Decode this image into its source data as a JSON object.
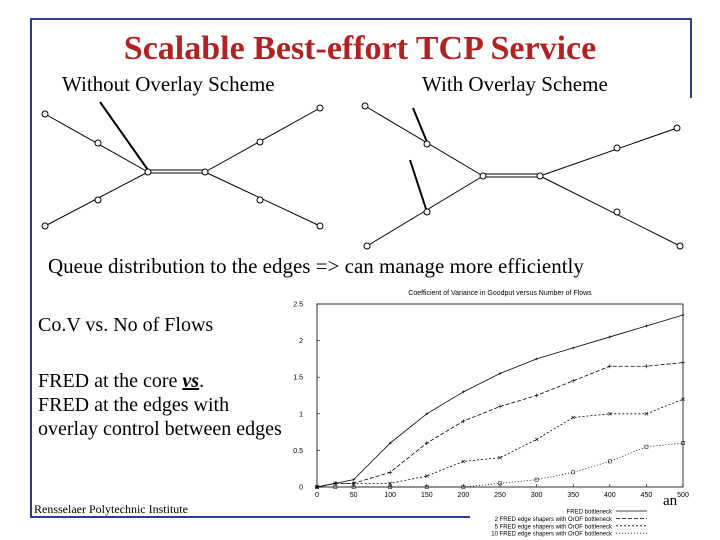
{
  "slide": {
    "title": "Scalable Best-effort TCP Service",
    "label_without": "Without Overlay Scheme",
    "label_with": "With Overlay Scheme",
    "queue_text": "Queue distribution to the edges => can manage more efficiently",
    "cov_text": "Co.V vs. No of Flows",
    "fred_line1_a": "FRED at the core ",
    "fred_line1_vs": "vs",
    "fred_line1_b": ".",
    "fred_rest": "FRED at the edges with overlay control between edges",
    "footer": "Rensselaer Polytechnic Institute",
    "corner_fragment": "an"
  },
  "colors": {
    "title": "#b22222",
    "frame": "#2a3d9a"
  },
  "chart_data": {
    "type": "line",
    "title": "Coefficient of Variance in Goodput versus Number of Flows",
    "x": [
      0,
      25,
      50,
      100,
      150,
      200,
      250,
      300,
      350,
      400,
      450,
      500
    ],
    "xticks": [
      0,
      50,
      100,
      150,
      200,
      250,
      300,
      350,
      400,
      450,
      500
    ],
    "yticks": [
      0,
      0.5,
      1,
      1.5,
      2,
      2.5
    ],
    "xlim": [
      0,
      500
    ],
    "ylim": [
      0,
      2.5
    ],
    "series": [
      {
        "name": "FRED bottleneck",
        "values": [
          0,
          0.05,
          0.1,
          0.6,
          1.0,
          1.3,
          1.55,
          1.75,
          1.9,
          2.05,
          2.2,
          2.35
        ]
      },
      {
        "name": "2 FRED edge shapers with OrOF bottleneck",
        "values": [
          0,
          0.05,
          0.05,
          0.2,
          0.6,
          0.9,
          1.1,
          1.25,
          1.45,
          1.65,
          1.65,
          1.7
        ]
      },
      {
        "name": "5 FRED edge shapers with OrOF bottleneck",
        "values": [
          0,
          0.05,
          0.05,
          0.05,
          0.15,
          0.35,
          0.4,
          0.65,
          0.95,
          1.0,
          1.0,
          1.2
        ]
      },
      {
        "name": "10 FRED edge shapers with OrOF bottleneck",
        "values": [
          0,
          0,
          0,
          0,
          0,
          0,
          0.05,
          0.1,
          0.2,
          0.35,
          0.55,
          0.6
        ]
      }
    ]
  }
}
